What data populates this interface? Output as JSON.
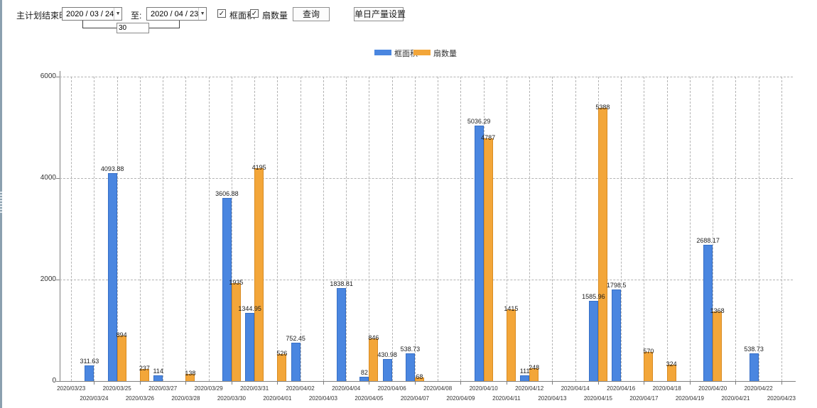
{
  "toolbar": {
    "label_end_time": "主计划结束时间:",
    "date_from": "2020 / 03 / 24",
    "label_to": "至:",
    "date_to": "2020 / 04 / 23",
    "interval_days": "30",
    "checkbox_frame_area": "框面积",
    "checkbox_fan_count": "扇数量",
    "query_button": "查询",
    "daily_output_button": "单日产量设置"
  },
  "chart_data": {
    "type": "bar",
    "title": "",
    "xlabel": "",
    "ylabel": "",
    "ylim": [
      0,
      6000
    ],
    "yticks": [
      0,
      2000,
      4000,
      6000
    ],
    "grid": true,
    "legend_position": "top",
    "categories": [
      "2020/03/23",
      "2020/03/24",
      "2020/03/25",
      "2020/03/26",
      "2020/03/27",
      "2020/03/28",
      "2020/03/29",
      "2020/03/30",
      "2020/03/31",
      "2020/04/01",
      "2020/04/02",
      "2020/04/03",
      "2020/04/04",
      "2020/04/05",
      "2020/04/06",
      "2020/04/07",
      "2020/04/08",
      "2020/04/09",
      "2020/04/10",
      "2020/04/11",
      "2020/04/12",
      "2020/04/13",
      "2020/04/14",
      "2020/04/15",
      "2020/04/16",
      "2020/04/17",
      "2020/04/18",
      "2020/04/19",
      "2020/04/20",
      "2020/04/21",
      "2020/04/22",
      "2020/04/23"
    ],
    "series": [
      {
        "name": "框面积",
        "color": "#4a86e0",
        "border_color": "#366fc7",
        "values": [
          null,
          311.63,
          4093.88,
          null,
          114,
          null,
          null,
          3606.88,
          1344.95,
          null,
          752.45,
          null,
          1838.81,
          82,
          430.98,
          538.73,
          null,
          null,
          5036.29,
          null,
          111,
          null,
          null,
          1585.96,
          1798.5,
          null,
          null,
          null,
          2688.17,
          null,
          538.73,
          null
        ]
      },
      {
        "name": "扇数量",
        "color": "#f3a639",
        "border_color": "#d88b22",
        "values": [
          null,
          null,
          894,
          237,
          null,
          138,
          null,
          1935,
          4195,
          526,
          null,
          null,
          null,
          846,
          null,
          68,
          null,
          null,
          4787,
          1415,
          248,
          null,
          null,
          5388,
          null,
          570,
          324,
          null,
          1368,
          null,
          null,
          null
        ]
      }
    ]
  }
}
